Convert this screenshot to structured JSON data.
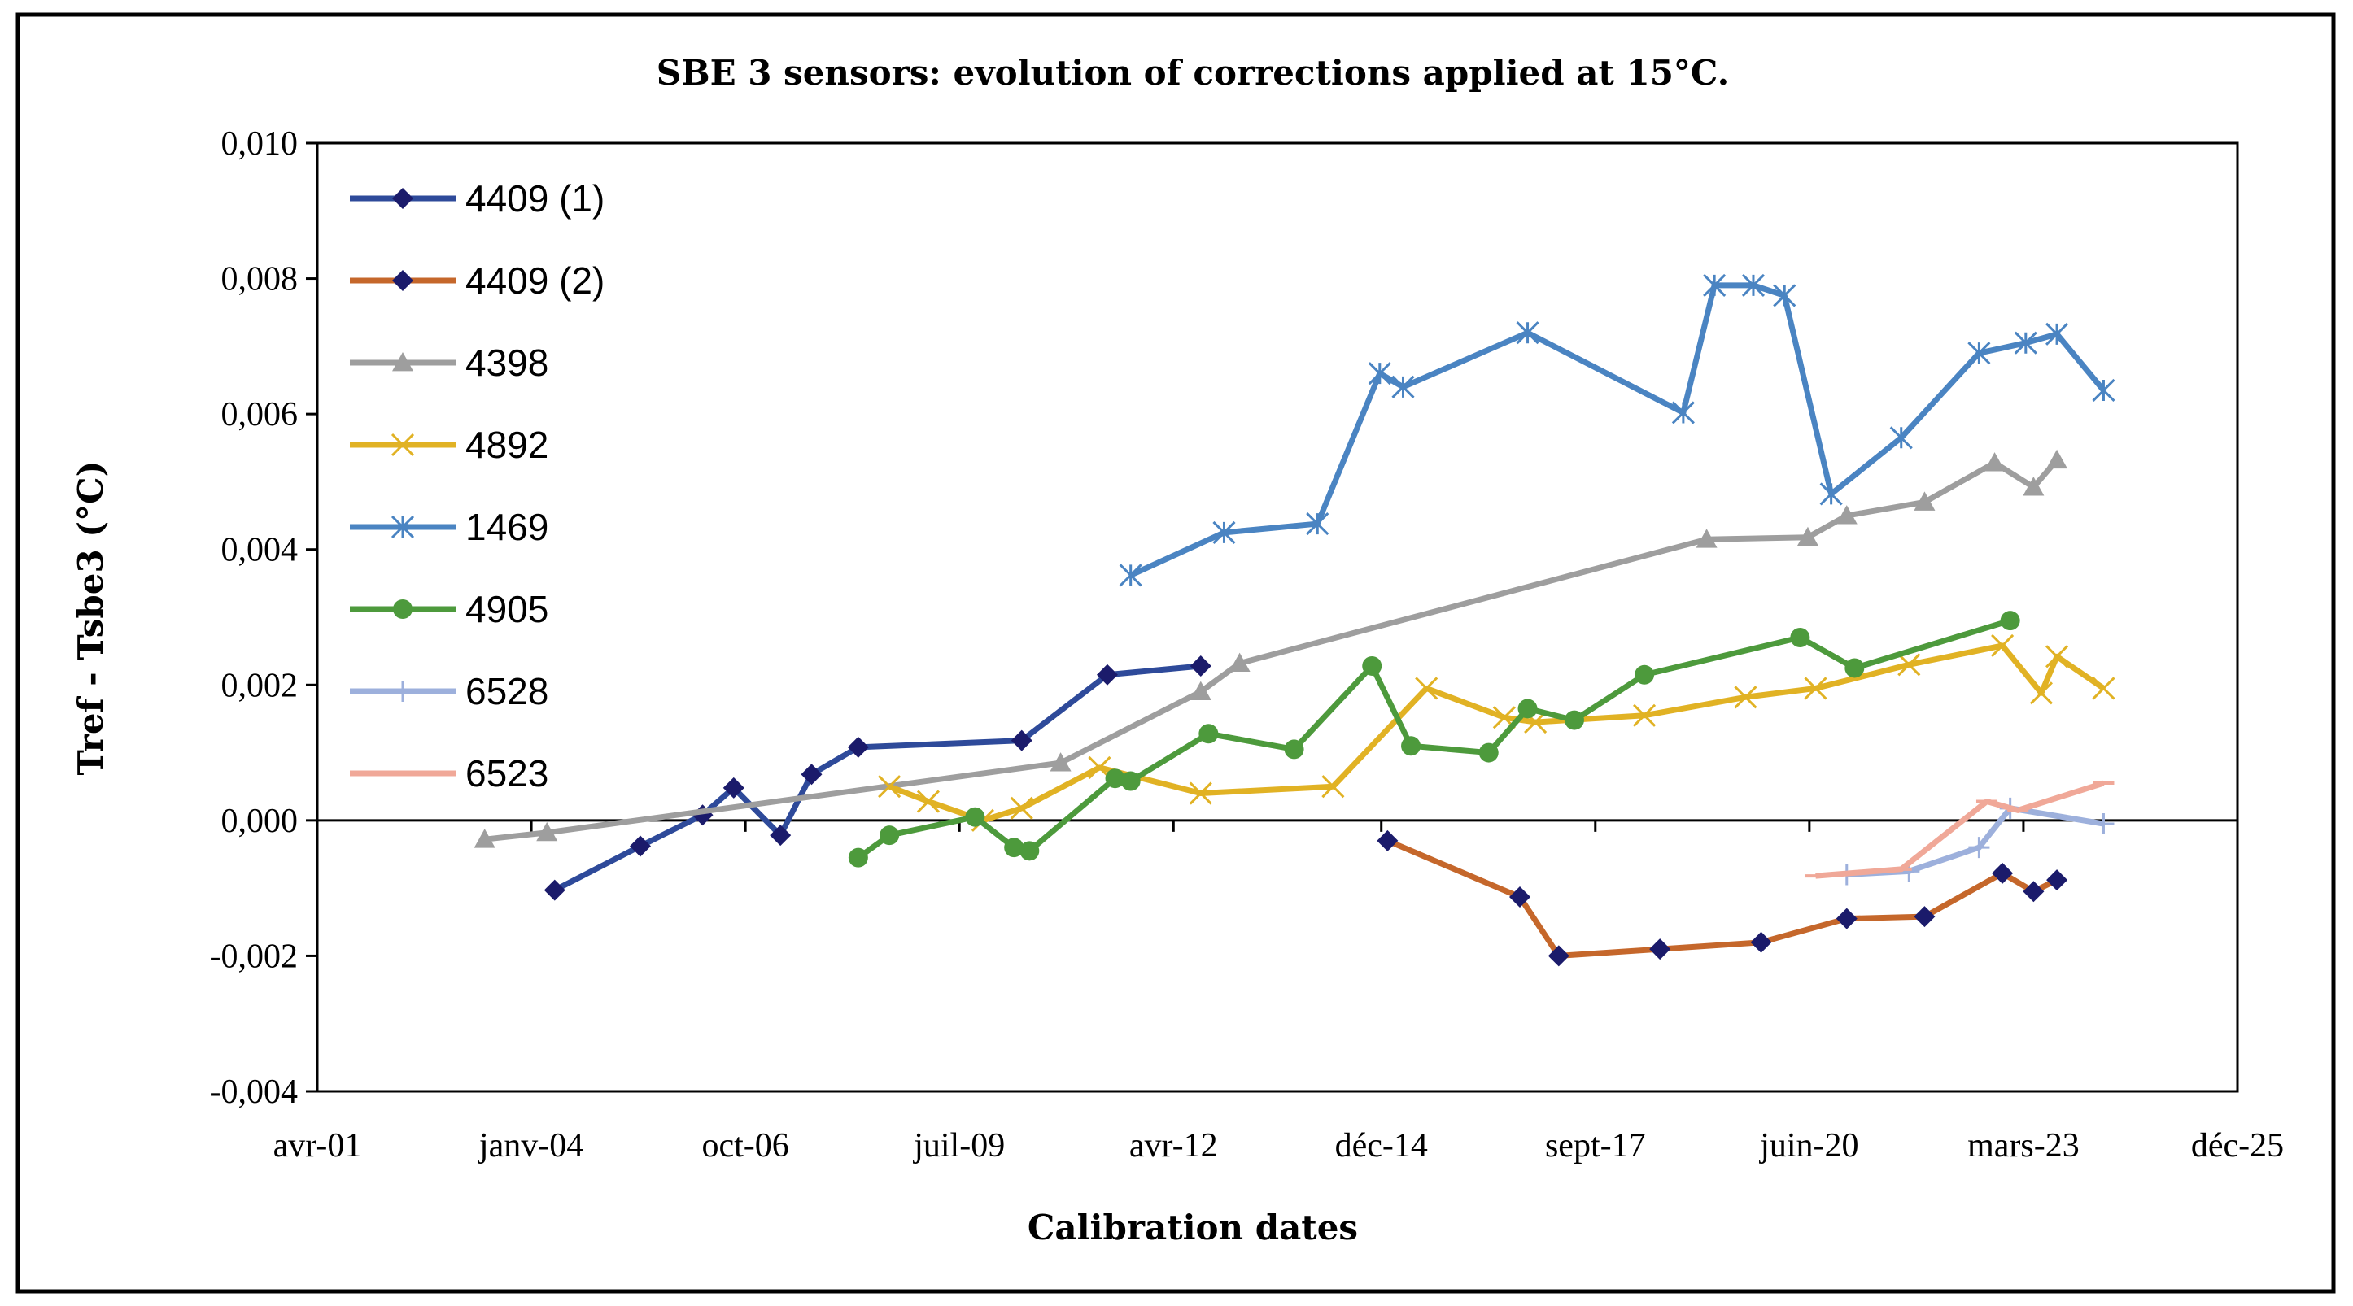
{
  "chart_data": {
    "type": "line",
    "title": "SBE 3 sensors: evolution  of corrections applied  at 15°C.",
    "xlabel": "Calibration  dates",
    "ylabel": "Tref - Tsbe3 (°C)",
    "xlim": [
      2001.25,
      2025.92
    ],
    "ylim": [
      -0.004,
      0.01
    ],
    "yticks": [
      -0.004,
      -0.002,
      0.0,
      0.002,
      0.004,
      0.006,
      0.008,
      0.01
    ],
    "ytick_labels": [
      "-0,004",
      "-0,002",
      "0,000",
      "0,002",
      "0,004",
      "0,006",
      "0,008",
      "0,010"
    ],
    "xticks": [
      2001.25,
      2004.0,
      2006.75,
      2009.5,
      2012.25,
      2014.92,
      2017.67,
      2020.42,
      2023.17,
      2025.92
    ],
    "xtick_labels": [
      "avr-01",
      "janv-04",
      "oct-06",
      "juil-09",
      "avr-12",
      "déc-14",
      "sept-17",
      "juin-20",
      "mars-23",
      "déc-25"
    ],
    "legend_position": "top-left",
    "series": [
      {
        "name": "4409 (1)",
        "color": "#2E4A9A",
        "marker": "diamond",
        "marker_color": "#1B1B6B",
        "x": [
          2004.3,
          2005.4,
          2006.2,
          2006.6,
          2007.2,
          2007.6,
          2008.2,
          2010.3,
          2011.4,
          2012.6
        ],
        "y": [
          -0.00103,
          -0.00038,
          8e-05,
          0.00048,
          -0.00022,
          0.00068,
          0.00108,
          0.00118,
          0.00215,
          0.00228
        ]
      },
      {
        "name": "4409 (2)",
        "color": "#C5672B",
        "marker": "diamond",
        "marker_color": "#1B1B6B",
        "x": [
          2015.0,
          2016.7,
          2017.2,
          2018.5,
          2019.8,
          2020.9,
          2021.9,
          2022.9,
          2023.3,
          2023.6
        ],
        "y": [
          -0.0003,
          -0.00113,
          -0.002,
          -0.0019,
          -0.0018,
          -0.00145,
          -0.00142,
          -0.00078,
          -0.00105,
          -0.00088
        ]
      },
      {
        "name": "4398",
        "color": "#9E9E9E",
        "marker": "triangle",
        "marker_color": "#9E9E9E",
        "x": [
          2003.4,
          2004.2,
          2010.8,
          2012.6,
          2013.1,
          2019.1,
          2020.4,
          2020.9,
          2021.9,
          2022.8,
          2023.3,
          2023.6
        ],
        "y": [
          -0.00028,
          -0.00018,
          0.00085,
          0.0019,
          0.00232,
          0.00415,
          0.00418,
          0.0045,
          0.0047,
          0.00528,
          0.00492,
          0.00532
        ]
      },
      {
        "name": "4892",
        "color": "#E1B224",
        "marker": "x",
        "marker_color": "#E1B224",
        "x": [
          2008.6,
          2009.1,
          2009.8,
          2010.3,
          2011.3,
          2012.6,
          2014.3,
          2015.5,
          2016.5,
          2016.9,
          2018.3,
          2019.6,
          2020.5,
          2021.7,
          2022.9,
          2023.4,
          2023.6,
          2024.2
        ],
        "y": [
          0.0005,
          0.00028,
          0.0,
          0.00018,
          0.00078,
          0.0004,
          0.0005,
          0.00195,
          0.00152,
          0.00145,
          0.00155,
          0.00182,
          0.00195,
          0.0023,
          0.00258,
          0.00188,
          0.00242,
          0.00195
        ]
      },
      {
        "name": "1469",
        "color": "#4A84C2",
        "marker": "star",
        "marker_color": "#4A84C2",
        "x": [
          2011.7,
          2012.9,
          2014.1,
          2014.9,
          2015.2,
          2016.8,
          2018.8,
          2019.2,
          2019.7,
          2020.1,
          2020.7,
          2021.6,
          2022.6,
          2023.2,
          2023.6,
          2024.2
        ],
        "y": [
          0.00362,
          0.00425,
          0.00438,
          0.0066,
          0.0064,
          0.0072,
          0.00602,
          0.0079,
          0.0079,
          0.00775,
          0.00482,
          0.00565,
          0.0069,
          0.00705,
          0.00718,
          0.00635
        ]
      },
      {
        "name": "4905",
        "color": "#4D9A3C",
        "marker": "circle",
        "marker_color": "#4D9A3C",
        "x": [
          2008.2,
          2008.6,
          2009.7,
          2010.2,
          2010.4,
          2011.5,
          2011.7,
          2012.7,
          2013.8,
          2014.8,
          2015.3,
          2016.3,
          2016.8,
          2017.4,
          2018.3,
          2020.3,
          2021.0,
          2023.0
        ],
        "y": [
          -0.00055,
          -0.00022,
          5e-05,
          -0.0004,
          -0.00045,
          0.00062,
          0.00058,
          0.00128,
          0.00105,
          0.00228,
          0.0011,
          0.001,
          0.00165,
          0.00148,
          0.00215,
          0.0027,
          0.00225,
          0.00295
        ]
      },
      {
        "name": "6528",
        "color": "#9DB0DC",
        "marker": "plus",
        "marker_color": "#9DB0DC",
        "x": [
          2020.9,
          2021.7,
          2022.6,
          2023.0,
          2024.2
        ],
        "y": [
          -0.0008,
          -0.00075,
          -0.0004,
          0.00018,
          -5e-05
        ]
      },
      {
        "name": "6523",
        "color": "#F0A898",
        "marker": "dash",
        "marker_color": "#F0A898",
        "x": [
          2020.5,
          2021.6,
          2022.7,
          2023.1,
          2024.2
        ],
        "y": [
          -0.00082,
          -0.00072,
          0.00028,
          0.00015,
          0.00055
        ]
      }
    ]
  }
}
